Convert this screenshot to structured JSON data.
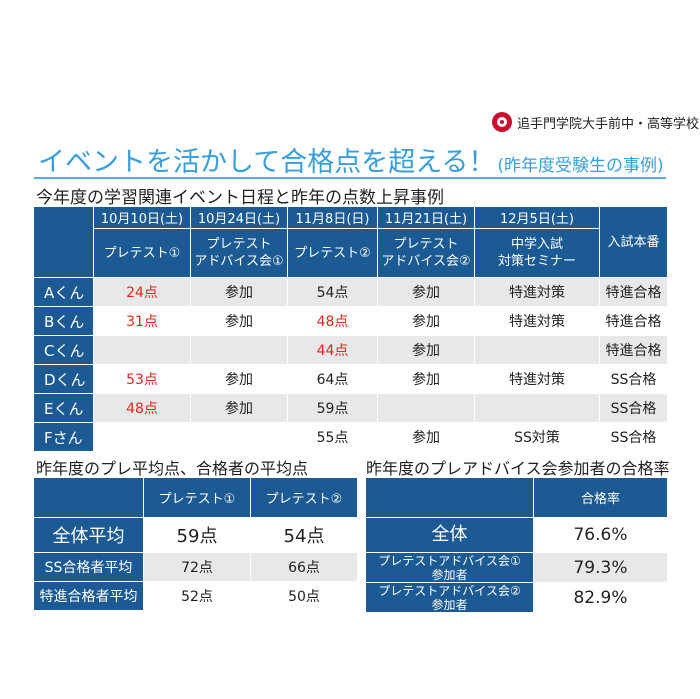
{
  "header": {
    "school_name": "追手門学院大手前中・高等学校",
    "title_main": "イベントを活かして合格点を超える！",
    "title_sub": "(昨年度受験生の事例)"
  },
  "schedule": {
    "heading": "今年度の学習関連イベント日程と昨年の点数上昇事例",
    "dates": [
      "10月10日(土)",
      "10月24日(土)",
      "11月8日(日)",
      "11月21日(土)",
      "12月5日(土)"
    ],
    "events": [
      "プレテスト①",
      "プレテスト\nアドバイス会①",
      "プレテスト②",
      "プレテスト\nアドバイス会②",
      "中学入試\n対策セミナー"
    ],
    "result_header": "入試本番",
    "rows": [
      {
        "name": "Aくん",
        "c1": "24点",
        "c2": "参加",
        "c3": "54点",
        "c4": "参加",
        "c5": "特進対策",
        "result": "特進合格",
        "red1": true,
        "red3": false
      },
      {
        "name": "Bくん",
        "c1": "31点",
        "c2": "参加",
        "c3": "48点",
        "c4": "参加",
        "c5": "特進対策",
        "result": "特進合格",
        "red1": true,
        "red3": true
      },
      {
        "name": "Cくん",
        "c1": "",
        "c2": "",
        "c3": "44点",
        "c4": "参加",
        "c5": "",
        "result": "特進合格",
        "red1": false,
        "red3": true
      },
      {
        "name": "Dくん",
        "c1": "53点",
        "c2": "参加",
        "c3": "64点",
        "c4": "参加",
        "c5": "特進対策",
        "result": "SS合格",
        "red1": true,
        "red3": false
      },
      {
        "name": "Eくん",
        "c1": "48点",
        "c2": "参加",
        "c3": "59点",
        "c4": "",
        "c5": "",
        "result": "SS合格",
        "red1": true,
        "red3": false
      },
      {
        "name": "Fさん",
        "c1": "",
        "c2": "",
        "c3": "55点",
        "c4": "参加",
        "c5": "SS対策",
        "result": "SS合格",
        "red1": false,
        "red3": false
      }
    ]
  },
  "averages": {
    "heading": "昨年度のプレ平均点、合格者の平均点",
    "col1": "プレテスト①",
    "col2": "プレテスト②",
    "rows": [
      {
        "label": "全体平均",
        "v1": "59点",
        "v2": "54点"
      },
      {
        "label": "SS合格者平均",
        "v1": "72点",
        "v2": "66点"
      },
      {
        "label": "特進合格者平均",
        "v1": "52点",
        "v2": "50点"
      }
    ]
  },
  "pass_rate": {
    "heading": "昨年度のプレアドバイス会参加者の合格率",
    "col": "合格率",
    "rows": [
      {
        "label": "全体",
        "value": "76.6%"
      },
      {
        "label": "プレテストアドバイス会①\n参加者",
        "value": "79.3%"
      },
      {
        "label": "プレテストアドバイス会②\n参加者",
        "value": "82.9%"
      }
    ]
  }
}
